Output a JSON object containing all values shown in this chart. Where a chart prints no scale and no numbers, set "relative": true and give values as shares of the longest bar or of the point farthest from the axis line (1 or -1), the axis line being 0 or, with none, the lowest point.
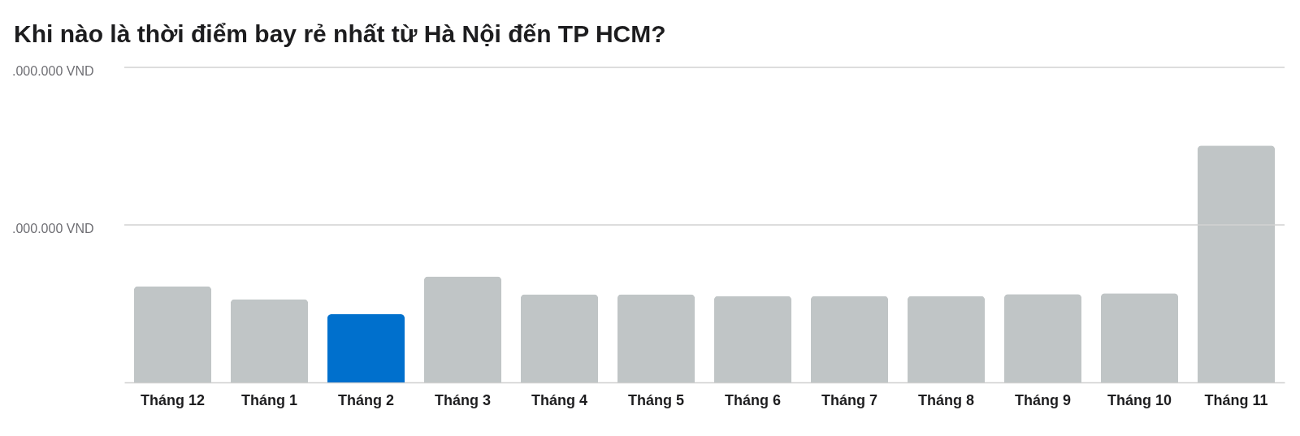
{
  "chart_data": {
    "type": "bar",
    "title": "Khi nào là thời điểm bay rẻ nhất từ Hà Nội đến TP HCM?",
    "categories": [
      "Tháng 12",
      "Tháng 1",
      "Tháng 2",
      "Tháng 3",
      "Tháng 4",
      "Tháng 5",
      "Tháng 6",
      "Tháng 7",
      "Tháng 8",
      "Tháng 9",
      "Tháng 10",
      "Tháng 11"
    ],
    "values": [
      0.406,
      0.351,
      0.288,
      0.447,
      0.372,
      0.372,
      0.365,
      0.365,
      0.365,
      0.373,
      0.376,
      1
    ],
    "colors": [
      "#c0c5c6",
      "#c0c5c6",
      "#0070cd",
      "#c0c5c6",
      "#c0c5c6",
      "#c0c5c6",
      "#c0c5c6",
      "#c0c5c6",
      "#c0c5c6",
      "#c0c5c6",
      "#c0c5c6",
      "#c0c5c6"
    ],
    "relative": true,
    "ref_lines": [
      {
        "axis": "y",
        "value": 1.33,
        "label": ".000.000 VND",
        "color": "#d2d2d2"
      },
      {
        "axis": "y",
        "value": 0.665,
        "label": ".000.000 VND",
        "color": "#d2d2d2"
      }
    ]
  }
}
